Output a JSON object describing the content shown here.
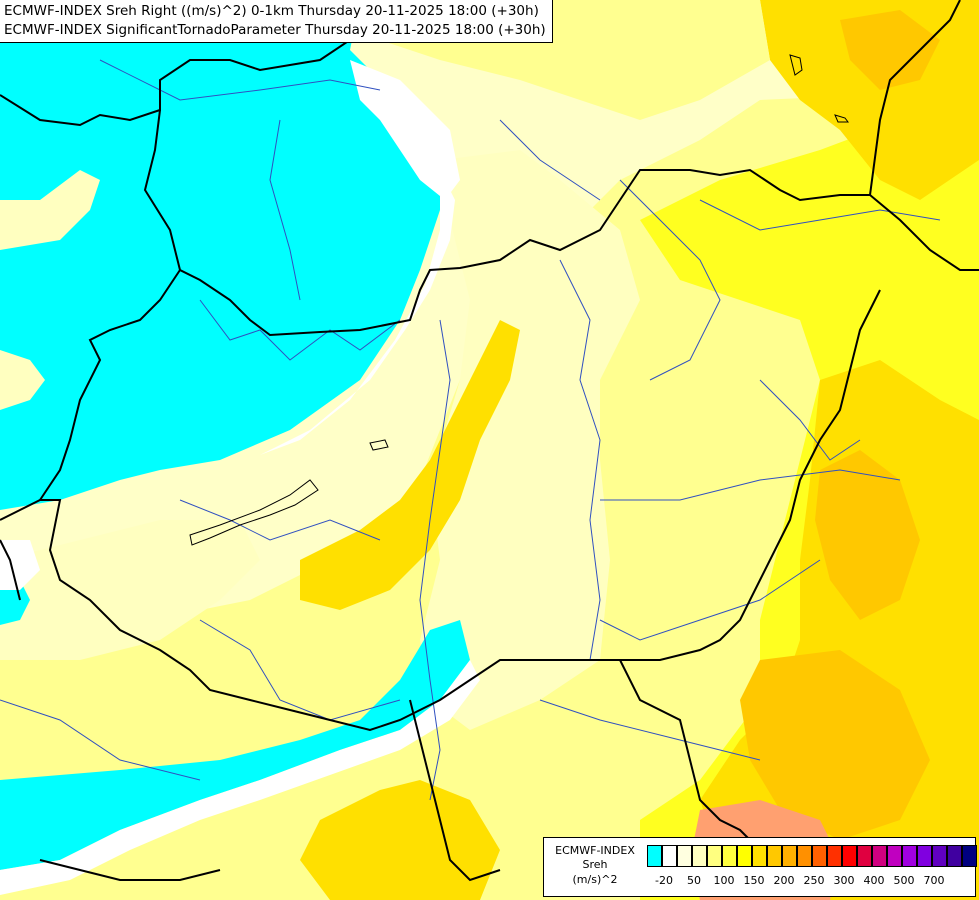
{
  "title": {
    "line1": "ECMWF-INDEX Sreh Right ((m/s)^2) 0-1km Thursday 20-11-2025 18:00 (+30h)",
    "line2": "ECMWF-INDEX SignificantTornadoParameter Thursday 20-11-2025 18:00 (+30h)"
  },
  "legend": {
    "source": "ECMWF-INDEX",
    "variable": "Sreh",
    "unit": "(m/s)^2",
    "colors": [
      "#00ffff",
      "#ffffff",
      "#ffffe0",
      "#ffffc0",
      "#ffff80",
      "#ffff40",
      "#ffff00",
      "#ffe000",
      "#ffc800",
      "#ffb000",
      "#ff9000",
      "#ff6000",
      "#ff3000",
      "#ff0000",
      "#e00040",
      "#d00080",
      "#c000c0",
      "#a000e0",
      "#8000e0",
      "#6000c0",
      "#4000a0",
      "#000080"
    ],
    "ticks": [
      "-20",
      "50",
      "100",
      "150",
      "200",
      "250",
      "300",
      "400",
      "500",
      "700"
    ]
  },
  "colors": {
    "cyan": "#00ffff",
    "pale_yellow": "#ffffc0",
    "light_yellow": "#ffff80",
    "yellow": "#ffff00",
    "gold": "#ffe000",
    "orange_yellow": "#ffc800",
    "orange": "#ffb000",
    "salmon": "#ff9080",
    "border": "#000000",
    "river": "#3050c0"
  }
}
